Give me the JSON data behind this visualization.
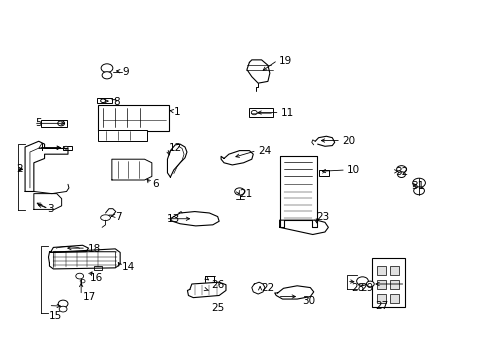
{
  "bg_color": "#ffffff",
  "fig_width": 4.89,
  "fig_height": 3.6,
  "dpi": 100,
  "font_size": 7.5,
  "line_color": "#000000",
  "label_positions": {
    "1": [
      0.355,
      0.69,
      "left"
    ],
    "2": [
      0.032,
      0.53,
      "left"
    ],
    "3": [
      0.095,
      0.418,
      "left"
    ],
    "4": [
      0.075,
      0.588,
      "left"
    ],
    "5": [
      0.07,
      0.66,
      "left"
    ],
    "6": [
      0.31,
      0.488,
      "left"
    ],
    "7": [
      0.235,
      0.398,
      "left"
    ],
    "8": [
      0.23,
      0.718,
      "left"
    ],
    "9": [
      0.25,
      0.8,
      "left"
    ],
    "10": [
      0.71,
      0.528,
      "left"
    ],
    "11": [
      0.575,
      0.688,
      "left"
    ],
    "12": [
      0.345,
      0.59,
      "left"
    ],
    "13": [
      0.34,
      0.39,
      "left"
    ],
    "14": [
      0.248,
      0.258,
      "left"
    ],
    "15": [
      0.098,
      0.122,
      "left"
    ],
    "16": [
      0.182,
      0.228,
      "left"
    ],
    "17": [
      0.168,
      0.175,
      "left"
    ],
    "18": [
      0.178,
      0.308,
      "left"
    ],
    "19": [
      0.57,
      0.832,
      "left"
    ],
    "20": [
      0.7,
      0.608,
      "left"
    ],
    "21": [
      0.49,
      0.462,
      "left"
    ],
    "22": [
      0.535,
      0.198,
      "left"
    ],
    "23": [
      0.648,
      0.398,
      "left"
    ],
    "24": [
      0.528,
      0.582,
      "left"
    ],
    "25": [
      0.432,
      0.142,
      "left"
    ],
    "26": [
      0.432,
      0.208,
      "left"
    ],
    "27": [
      0.768,
      0.148,
      "left"
    ],
    "28": [
      0.718,
      0.198,
      "left"
    ],
    "29": [
      0.738,
      0.198,
      "left"
    ],
    "30": [
      0.618,
      0.162,
      "left"
    ],
    "31": [
      0.842,
      0.482,
      "left"
    ],
    "32": [
      0.808,
      0.522,
      "left"
    ]
  }
}
